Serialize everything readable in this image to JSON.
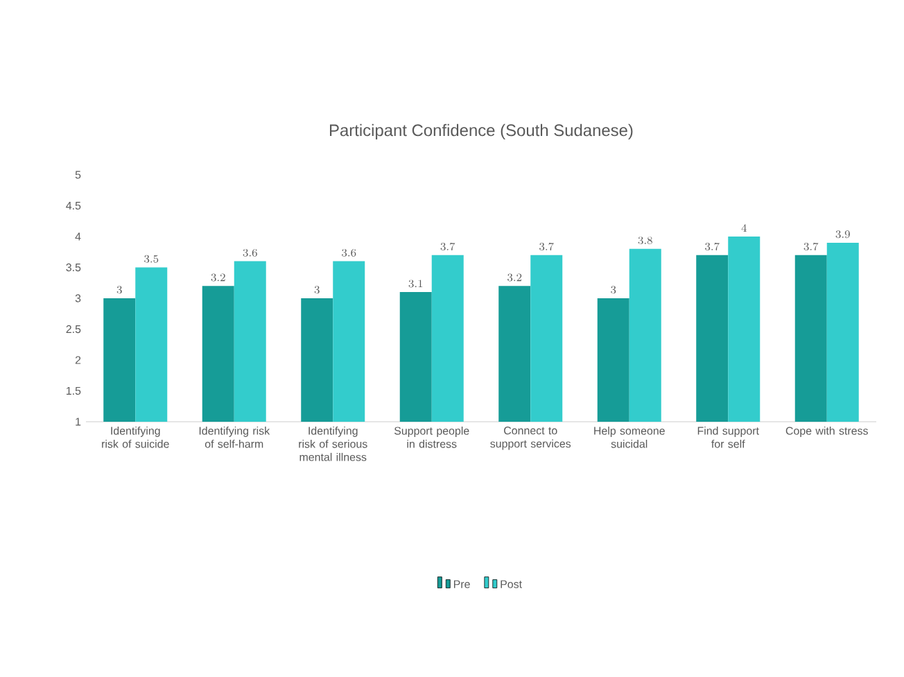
{
  "chart_data": {
    "type": "bar",
    "title": "Participant Confidence (South Sudanese)",
    "categories": [
      "Identifying risk of suicide",
      "Identifying risk of self-harm",
      "Identifying risk of serious mental illness",
      "Support people in distress",
      "Connect to support services",
      "Help someone suicidal",
      "Find support for self",
      "Cope with stress"
    ],
    "series": [
      {
        "name": "Pre",
        "color": "#169c97",
        "values": [
          3,
          3.2,
          3,
          3.1,
          3.2,
          3,
          3.7,
          3.7
        ]
      },
      {
        "name": "Post",
        "color": "#33cccc",
        "values": [
          3.5,
          3.6,
          3.6,
          3.7,
          3.7,
          3.8,
          4,
          3.9
        ]
      }
    ],
    "ylim": [
      1,
      5
    ],
    "yticks": [
      1,
      1.5,
      2,
      2.5,
      3,
      3.5,
      4,
      4.5,
      5
    ],
    "data_labels": true,
    "legend": "bottom"
  }
}
